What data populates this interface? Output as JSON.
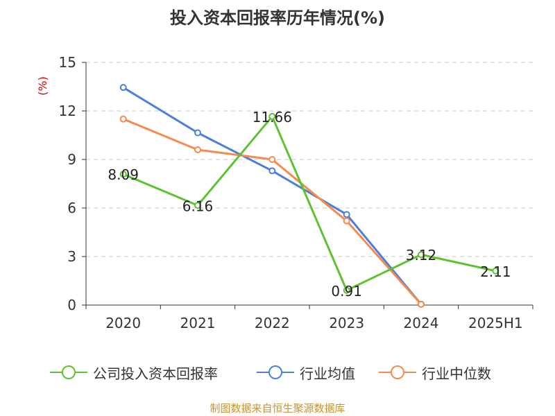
{
  "title": "投入资本回报率历年情况(%)",
  "unit_label": "(%)",
  "source": "制图数据来自恒生聚源数据库",
  "chart_data": {
    "type": "line",
    "title": "投入资本回报率历年情况(%)",
    "ylabel": "(%)",
    "ylim": [
      0,
      15
    ],
    "yticks": [
      0,
      3,
      6,
      9,
      12,
      15
    ],
    "categories": [
      "2020",
      "2021",
      "2022",
      "2023",
      "2024",
      "2025H1"
    ],
    "grid": true,
    "legend_position": "bottom",
    "series": [
      {
        "name": "公司投入资本回报率",
        "color": "#5cc22e",
        "values": [
          8.09,
          6.16,
          11.66,
          0.91,
          3.12,
          2.11
        ],
        "labels": [
          "8.09",
          "6.16",
          "11.66",
          "0.91",
          "3.12",
          "2.11"
        ]
      },
      {
        "name": "行业均值",
        "color": "#4a7fdc",
        "values": [
          13.45,
          10.65,
          8.3,
          5.6,
          0.05,
          null
        ]
      },
      {
        "name": "行业中位数",
        "color": "#f5894e",
        "values": [
          11.5,
          9.6,
          9.0,
          5.2,
          0.05,
          null
        ]
      }
    ]
  }
}
